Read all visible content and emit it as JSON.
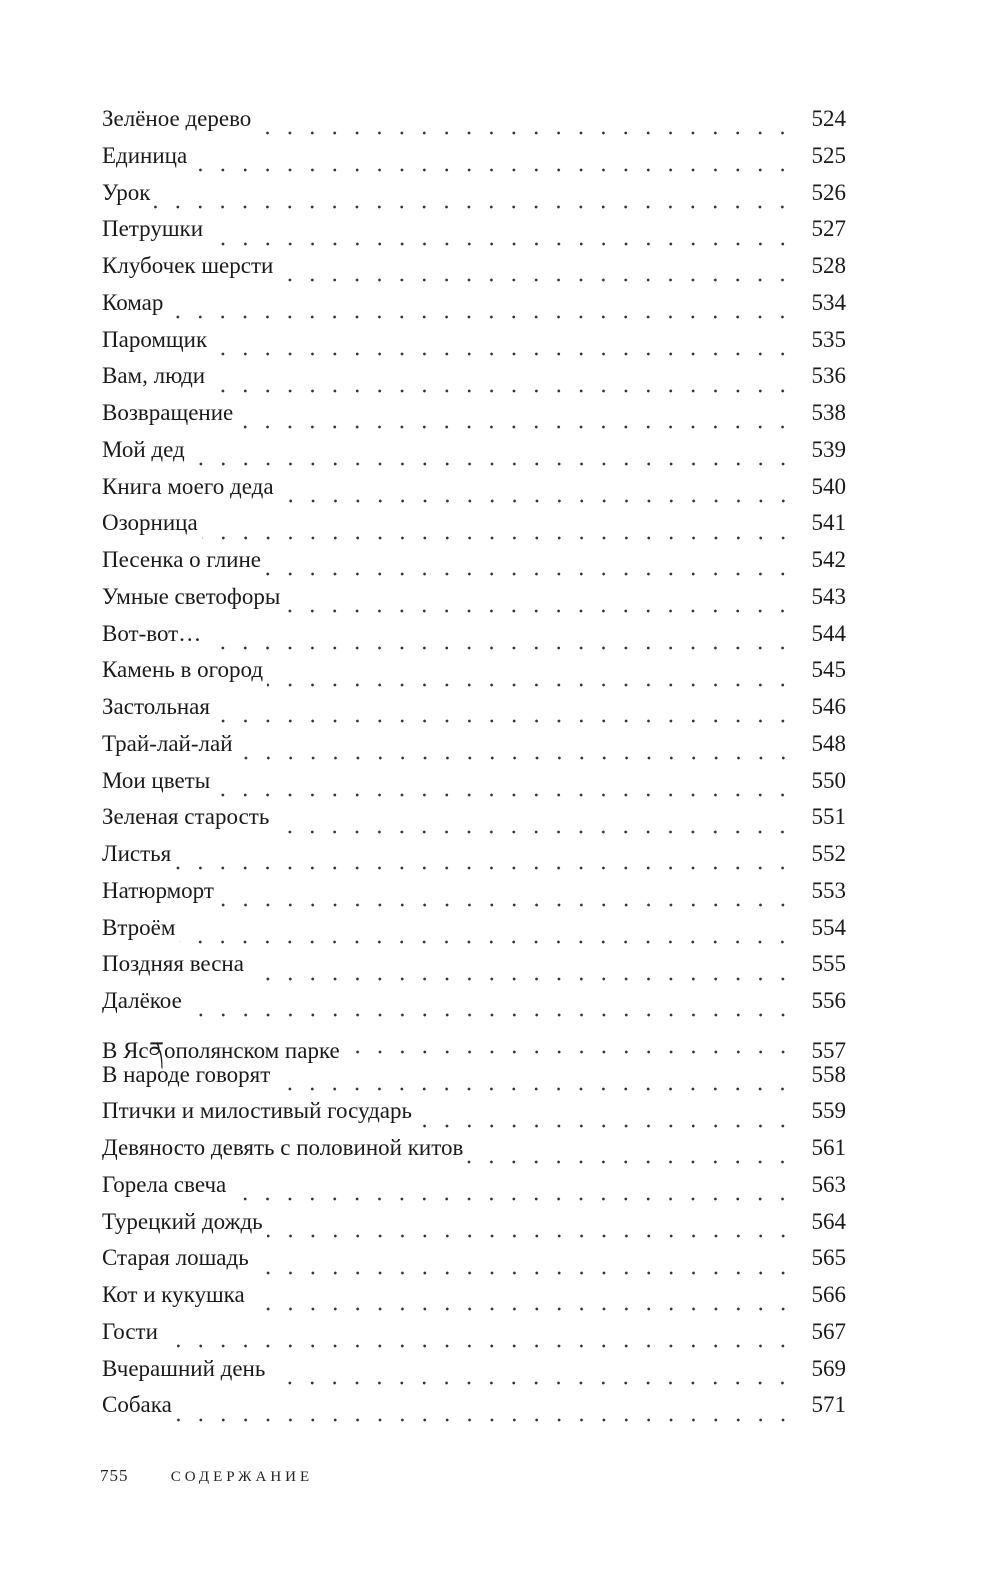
{
  "toc": [
    {
      "title": "Зелёное дерево",
      "page": "524"
    },
    {
      "title": "Единица",
      "page": "525"
    },
    {
      "title": "Урок",
      "page": "526"
    },
    {
      "title": "Петрушки",
      "page": "527"
    },
    {
      "title": "Клубочек шерсти",
      "page": "528"
    },
    {
      "title": "Комар",
      "page": "534"
    },
    {
      "title": "Паромщик",
      "page": "535"
    },
    {
      "title": "Вам, люди",
      "page": "536"
    },
    {
      "title": "Возвращение",
      "page": "538"
    },
    {
      "title": "Мой дед",
      "page": "539"
    },
    {
      "title": "Книга моего деда",
      "page": "540"
    },
    {
      "title": "Озорница",
      "page": "541"
    },
    {
      "title": "Песенка о глине",
      "page": "542"
    },
    {
      "title": "Умные светофоры",
      "page": "543"
    },
    {
      "title": "Вот-вот…",
      "page": "544"
    },
    {
      "title": "Камень в огород",
      "page": "545"
    },
    {
      "title": "Застольная",
      "page": "546"
    },
    {
      "title": "Трай-лай-лай",
      "page": "548"
    },
    {
      "title": "Мои цветы",
      "page": "550"
    },
    {
      "title": "Зеленая старость",
      "page": "551"
    },
    {
      "title": "Листья",
      "page": "552"
    },
    {
      "title": "Натюрморт",
      "page": "553"
    },
    {
      "title": "Втроём",
      "page": "554"
    },
    {
      "title": "Поздняя весна",
      "page": "555"
    },
    {
      "title": "Далёкое",
      "page": "556"
    },
    {
      "title": "В Ясནополянском парке",
      "page": "557"
    },
    {
      "title": "В народе говорят",
      "page": "558"
    },
    {
      "title": "Птички и милостивый государь",
      "page": "559"
    },
    {
      "title": "Девяносто девять с половиной китов",
      "page": "561"
    },
    {
      "title": "Горела свеча",
      "page": "563"
    },
    {
      "title": "Турецкий дождь",
      "page": "564"
    },
    {
      "title": "Старая лошадь",
      "page": "565"
    },
    {
      "title": "Кот и кукушка",
      "page": "566"
    },
    {
      "title": "Гости",
      "page": "567"
    },
    {
      "title": "Вчерашний день",
      "page": "569"
    },
    {
      "title": "Собака",
      "page": "571"
    }
  ],
  "footer": {
    "page_number": "755",
    "section": "СОДЕРЖАНИЕ"
  }
}
